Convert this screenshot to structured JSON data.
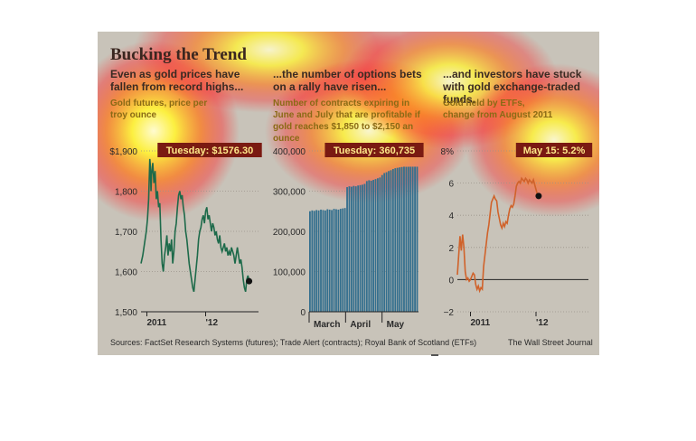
{
  "figure": {
    "title": "Bucking the Trend",
    "panels": [
      {
        "headline": "Even as gold prices have fallen from record highs...",
        "subtitle": "Gold futures, price per troy ounce",
        "callout": "Tuesday: $1576.30"
      },
      {
        "headline": "...the number of options bets on a rally have risen...",
        "subtitle": "Number of contracts expiring in June and July that are profitable if gold reaches $1,850 to $2,150 an ounce",
        "callout": "Tuesday: 360,735"
      },
      {
        "headline": "...and investors have stuck with gold exchange-traded funds.",
        "subtitle": "Gold held by ETFs, change from August 2011",
        "callout": "May 15: 5.2%"
      }
    ],
    "sources": "Sources: FactSet Research Systems (futures); Trade Alert (contracts); Royal Bank of Scotland (ETFs)",
    "credit": "The Wall Street Journal"
  },
  "colors": {
    "gold_line": "#1d6a4a",
    "options_bar": "#336f8e",
    "etf_line": "#d0622a",
    "callout_bg": "#7a1a12"
  },
  "chart_data": [
    {
      "type": "line",
      "y_ticks": [
        "$1,900",
        "1,800",
        "1,700",
        "1,600",
        "1,500"
      ],
      "y_tick_values": [
        1900,
        1800,
        1700,
        1600,
        1500
      ],
      "x_tick_labels": [
        "2011",
        "'12"
      ],
      "ylim": [
        1500,
        1900
      ],
      "xlim": [
        0,
        100
      ],
      "x_tick_positions": [
        5,
        55
      ],
      "series": [
        {
          "values": [
            [
              0,
              1620
            ],
            [
              1.5,
              1640
            ],
            [
              3,
              1670
            ],
            [
              4.5,
              1700
            ],
            [
              5.5,
              1730
            ],
            [
              6.5,
              1780
            ],
            [
              7,
              1830
            ],
            [
              7.5,
              1880
            ],
            [
              8,
              1860
            ],
            [
              8.5,
              1800
            ],
            [
              9,
              1840
            ],
            [
              10,
              1870
            ],
            [
              11,
              1820
            ],
            [
              12,
              1850
            ],
            [
              13,
              1780
            ],
            [
              14,
              1800
            ],
            [
              15,
              1760
            ],
            [
              16,
              1770
            ],
            [
              17,
              1680
            ],
            [
              18,
              1620
            ],
            [
              19,
              1600
            ],
            [
              20,
              1640
            ],
            [
              21,
              1660
            ],
            [
              22,
              1690
            ],
            [
              23,
              1640
            ],
            [
              24,
              1670
            ],
            [
              25,
              1650
            ],
            [
              26,
              1680
            ],
            [
              27,
              1620
            ],
            [
              28,
              1650
            ],
            [
              29,
              1700
            ],
            [
              30,
              1720
            ],
            [
              31,
              1760
            ],
            [
              32,
              1790
            ],
            [
              33,
              1800
            ],
            [
              34,
              1780
            ],
            [
              35,
              1790
            ],
            [
              36,
              1760
            ],
            [
              37,
              1740
            ],
            [
              38,
              1700
            ],
            [
              39,
              1680
            ],
            [
              40,
              1650
            ],
            [
              41,
              1620
            ],
            [
              42,
              1600
            ],
            [
              43,
              1580
            ],
            [
              44,
              1560
            ],
            [
              45,
              1550
            ],
            [
              46,
              1580
            ],
            [
              47,
              1610
            ],
            [
              48,
              1640
            ],
            [
              49,
              1680
            ],
            [
              50,
              1700
            ],
            [
              51,
              1710
            ],
            [
              52,
              1730
            ],
            [
              53,
              1740
            ],
            [
              54,
              1720
            ],
            [
              55,
              1750
            ],
            [
              56,
              1760
            ],
            [
              57,
              1730
            ],
            [
              58,
              1740
            ],
            [
              59,
              1720
            ],
            [
              60,
              1700
            ],
            [
              61,
              1720
            ],
            [
              62,
              1710
            ],
            [
              63,
              1690
            ],
            [
              64,
              1700
            ],
            [
              65,
              1680
            ],
            [
              66,
              1670
            ],
            [
              67,
              1690
            ],
            [
              68,
              1660
            ],
            [
              69,
              1650
            ],
            [
              70,
              1660
            ],
            [
              71,
              1670
            ],
            [
              72,
              1650
            ],
            [
              73,
              1660
            ],
            [
              74,
              1640
            ],
            [
              75,
              1650
            ],
            [
              76,
              1640
            ],
            [
              77,
              1660
            ],
            [
              78,
              1650
            ],
            [
              79,
              1640
            ],
            [
              80,
              1620
            ],
            [
              81,
              1640
            ],
            [
              82,
              1660
            ],
            [
              83,
              1640
            ],
            [
              84,
              1620
            ],
            [
              85,
              1630
            ],
            [
              86,
              1610
            ],
            [
              87,
              1580
            ],
            [
              88,
              1560
            ],
            [
              89,
              1550
            ],
            [
              90,
              1580
            ],
            [
              91,
              1590
            ],
            [
              92,
              1576
            ]
          ]
        }
      ]
    },
    {
      "type": "bar",
      "y_ticks": [
        "400,000",
        "300,000",
        "200,000",
        "100,000",
        "0"
      ],
      "y_tick_values": [
        400000,
        300000,
        200000,
        100000,
        0
      ],
      "x_tick_labels": [
        "March",
        "April",
        "May"
      ],
      "ylim": [
        0,
        400000
      ],
      "values": [
        250000,
        252000,
        251000,
        253000,
        252000,
        254000,
        253000,
        252000,
        255000,
        254000,
        253000,
        256000,
        255000,
        254000,
        256000,
        257000,
        258000,
        310000,
        312000,
        311000,
        313000,
        312000,
        314000,
        315000,
        316000,
        318000,
        325000,
        327000,
        326000,
        328000,
        330000,
        332000,
        334000,
        340000,
        345000,
        347000,
        350000,
        352000,
        355000,
        357000,
        358000,
        359000,
        360000,
        360735,
        360500,
        360600,
        360735,
        360735,
        360735,
        360735
      ]
    },
    {
      "type": "line",
      "y_ticks": [
        "8%",
        "6",
        "4",
        "2",
        "0",
        "−2"
      ],
      "y_tick_values": [
        8,
        6,
        4,
        2,
        0,
        -2
      ],
      "x_tick_labels": [
        "2011",
        "'12"
      ],
      "ylim": [
        -2,
        8
      ],
      "xlim": [
        0,
        100
      ],
      "x_tick_positions": [
        10,
        60
      ],
      "series": [
        {
          "values": [
            [
              0,
              0.3
            ],
            [
              1,
              1.5
            ],
            [
              2,
              2.7
            ],
            [
              3,
              1.8
            ],
            [
              4,
              2.8
            ],
            [
              5,
              2.0
            ],
            [
              6,
              0.5
            ],
            [
              7,
              0
            ],
            [
              8,
              0.1
            ],
            [
              9,
              -0.1
            ],
            [
              10,
              0
            ],
            [
              11,
              0.2
            ],
            [
              12,
              0.4
            ],
            [
              13,
              0.3
            ],
            [
              14,
              -0.3
            ],
            [
              15,
              -0.6
            ],
            [
              16,
              -0.4
            ],
            [
              17,
              -0.7
            ],
            [
              18,
              -0.5
            ],
            [
              19,
              -0.6
            ],
            [
              20,
              0.8
            ],
            [
              21,
              1.5
            ],
            [
              22,
              2.2
            ],
            [
              23,
              2.9
            ],
            [
              24,
              3.4
            ],
            [
              25,
              4.1
            ],
            [
              26,
              4.8
            ],
            [
              27,
              5.0
            ],
            [
              28,
              5.2
            ],
            [
              29,
              5.0
            ],
            [
              30,
              4.9
            ],
            [
              31,
              4.2
            ],
            [
              32,
              3.8
            ],
            [
              33,
              3.4
            ],
            [
              34,
              3.2
            ],
            [
              35,
              3.5
            ],
            [
              36,
              3.3
            ],
            [
              37,
              3.6
            ],
            [
              38,
              3.5
            ],
            [
              39,
              4.0
            ],
            [
              40,
              4.4
            ],
            [
              41,
              4.6
            ],
            [
              42,
              4.5
            ],
            [
              43,
              4.7
            ],
            [
              44,
              5.2
            ],
            [
              45,
              5.8
            ],
            [
              46,
              6.0
            ],
            [
              47,
              6.1
            ],
            [
              48,
              6.0
            ],
            [
              49,
              6.3
            ],
            [
              50,
              6.2
            ],
            [
              51,
              6.1
            ],
            [
              52,
              6.3
            ],
            [
              53,
              6.2
            ],
            [
              54,
              6.0
            ],
            [
              55,
              6.2
            ],
            [
              56,
              6.1
            ],
            [
              57,
              6.0
            ],
            [
              58,
              6.2
            ],
            [
              59,
              5.9
            ],
            [
              60,
              5.6
            ],
            [
              61,
              5.3
            ],
            [
              62,
              5.2
            ]
          ]
        }
      ]
    }
  ]
}
